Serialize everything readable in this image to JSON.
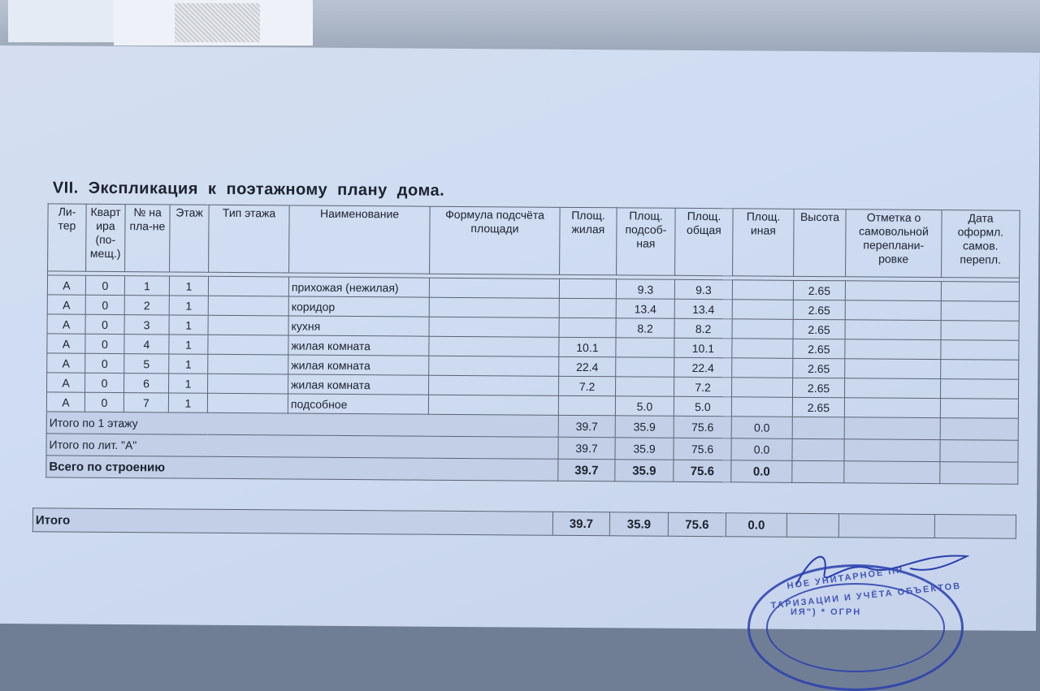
{
  "document": {
    "title": "VII.  Экспликация  к  поэтажному  плану  дома.",
    "headers": [
      "Ли-тер",
      "Кварт ира (по-мещ.)",
      "№ на пла-не",
      "Этаж",
      "Тип этажа",
      "Наименование",
      "Формула подсчёта площади",
      "Площ. жилая",
      "Площ. подсоб-ная",
      "Площ. общая",
      "Площ. иная",
      "Высота",
      "Отметка о самовольной переплани-ровке",
      "Дата оформл. самов. перепл."
    ],
    "rows": [
      {
        "liter": "A",
        "kv": "0",
        "num": "1",
        "floor": "1",
        "type": "",
        "name": "прихожая (нежилая)",
        "formula": "",
        "zhil": "",
        "podsob": "9.3",
        "obsh": "9.3",
        "inaya": "",
        "height": "2.65"
      },
      {
        "liter": "A",
        "kv": "0",
        "num": "2",
        "floor": "1",
        "type": "",
        "name": "коридор",
        "formula": "",
        "zhil": "",
        "podsob": "13.4",
        "obsh": "13.4",
        "inaya": "",
        "height": "2.65"
      },
      {
        "liter": "A",
        "kv": "0",
        "num": "3",
        "floor": "1",
        "type": "",
        "name": "кухня",
        "formula": "",
        "zhil": "",
        "podsob": "8.2",
        "obsh": "8.2",
        "inaya": "",
        "height": "2.65"
      },
      {
        "liter": "A",
        "kv": "0",
        "num": "4",
        "floor": "1",
        "type": "",
        "name": "жилая комната",
        "formula": "",
        "zhil": "10.1",
        "podsob": "",
        "obsh": "10.1",
        "inaya": "",
        "height": "2.65"
      },
      {
        "liter": "A",
        "kv": "0",
        "num": "5",
        "floor": "1",
        "type": "",
        "name": "жилая комната",
        "formula": "",
        "zhil": "22.4",
        "podsob": "",
        "obsh": "22.4",
        "inaya": "",
        "height": "2.65"
      },
      {
        "liter": "A",
        "kv": "0",
        "num": "6",
        "floor": "1",
        "type": "",
        "name": "жилая комната",
        "formula": "",
        "zhil": "7.2",
        "podsob": "",
        "obsh": "7.2",
        "inaya": "",
        "height": "2.65"
      },
      {
        "liter": "A",
        "kv": "0",
        "num": "7",
        "floor": "1",
        "type": "",
        "name": "подсобное",
        "formula": "",
        "zhil": "",
        "podsob": "5.0",
        "obsh": "5.0",
        "inaya": "",
        "height": "2.65"
      }
    ],
    "totals": [
      {
        "label": "Итого по 1 этажу",
        "zhil": "39.7",
        "podsob": "35.9",
        "obsh": "75.6",
        "inaya": "0.0"
      },
      {
        "label": "Итого по лит. \"А\"",
        "zhil": "39.7",
        "podsob": "35.9",
        "obsh": "75.6",
        "inaya": "0.0"
      },
      {
        "label": "Всего по строению",
        "zhil": "39.7",
        "podsob": "35.9",
        "obsh": "75.6",
        "inaya": "0.0"
      }
    ],
    "grand_total": {
      "label": "Итого",
      "zhil": "39.7",
      "podsob": "35.9",
      "obsh": "75.6",
      "inaya": "0.0"
    },
    "stamp": {
      "line1": "НОЕ УНИТАРНОЕ ПР",
      "line2": "ТАРИЗАЦИИ И УЧЁТА ОБЪЕКТОВ",
      "line3": "ИЯ\") * ОГРН"
    }
  }
}
